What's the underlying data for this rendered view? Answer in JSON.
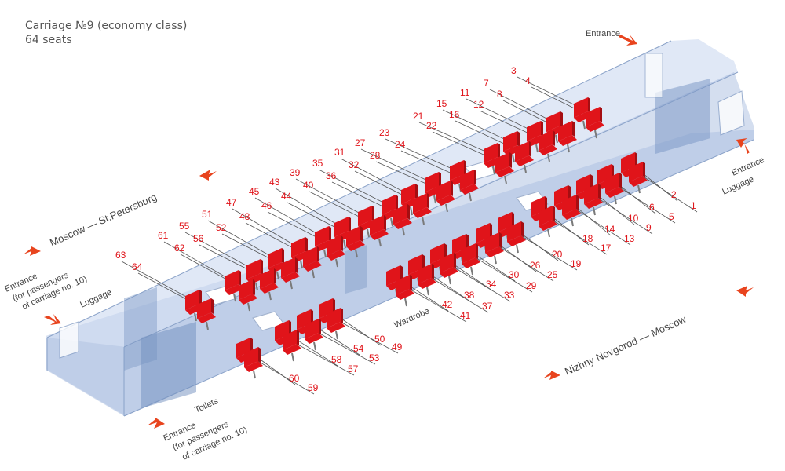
{
  "header": {
    "title": "Carriage №9 (economy class)",
    "subtitle": "64 seats"
  },
  "labels": {
    "entrance_top": "Entrance",
    "entrance_right": "Entrance",
    "luggage_right": "Luggage",
    "route_left": "Moscow — St.Petersburg",
    "route_right": "Nizhny Novgorod — Moscow",
    "entrance_left_l1": "Entrance",
    "entrance_left_l2": "(for passengers",
    "entrance_left_l3": "of carriage no. 10)",
    "luggage_left": "Luggage",
    "wardrobe": "Wardrobe",
    "toilets": "Toilets",
    "entrance_bottom_l1": "Entrance",
    "entrance_bottom_l2": "(for passengers",
    "entrance_bottom_l3": "of carriage no. 10)"
  },
  "colors": {
    "seat": "#e0141a",
    "seat_dark": "#a50e12",
    "seat_number": "#e0141a",
    "arrow": "#e8441e",
    "label": "#444444",
    "carriage_fill": "#b6c8e6",
    "carriage_edge": "#8aa2c8"
  },
  "seats": {
    "row_a": [
      "3",
      "7",
      "11",
      "15",
      "21",
      "23",
      "27",
      "31",
      "35",
      "39",
      "43",
      "45",
      "47",
      "51",
      "55",
      "61",
      "63"
    ],
    "row_b": [
      "4",
      "8",
      "12",
      "16",
      "22",
      "24",
      "28",
      "32",
      "36",
      "40",
      "44",
      "46",
      "48",
      "52",
      "56",
      "62",
      "64"
    ],
    "row_c": [
      "2",
      "6",
      "10",
      "14",
      "18",
      "20",
      "26",
      "30",
      "34",
      "38",
      "42",
      "50",
      "54",
      "58",
      "60"
    ],
    "row_d": [
      "1",
      "5",
      "9",
      "13",
      "17",
      "19",
      "25",
      "29",
      "33",
      "37",
      "41",
      "49",
      "53",
      "57",
      "59"
    ]
  }
}
